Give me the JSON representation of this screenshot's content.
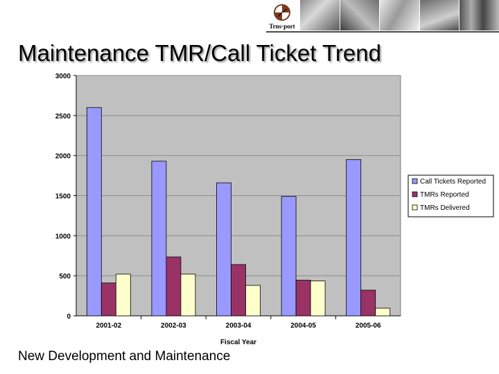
{
  "header": {
    "logo_text": "Trns·port"
  },
  "slide": {
    "title": "Maintenance TMR/Call Ticket Trend",
    "footer": "New Development and Maintenance"
  },
  "colors": {
    "call_tickets": "#9999ff",
    "tmrs_reported": "#993366",
    "tmrs_delivered": "#ffffcc",
    "plot_bg": "#c0c0c0",
    "grid": "#8c8c8c"
  },
  "chart_data": {
    "type": "bar",
    "title": "",
    "xlabel": "Fiscal Year",
    "ylabel": "",
    "ylim": [
      0,
      3000
    ],
    "yticks": [
      0,
      500,
      1000,
      1500,
      2000,
      2500,
      3000
    ],
    "categories": [
      "2001-02",
      "2002-03",
      "2003-04",
      "2004-05",
      "2005-06"
    ],
    "series": [
      {
        "name": "Call Tickets Reported",
        "color": "#9999ff",
        "values": [
          2600,
          1930,
          1660,
          1490,
          1950
        ]
      },
      {
        "name": "TMRs Reported",
        "color": "#993366",
        "values": [
          410,
          735,
          640,
          445,
          320
        ]
      },
      {
        "name": "TMRs Delivered",
        "color": "#ffffcc",
        "values": [
          520,
          520,
          380,
          435,
          95
        ]
      }
    ],
    "grid": true,
    "legend_position": "right"
  }
}
